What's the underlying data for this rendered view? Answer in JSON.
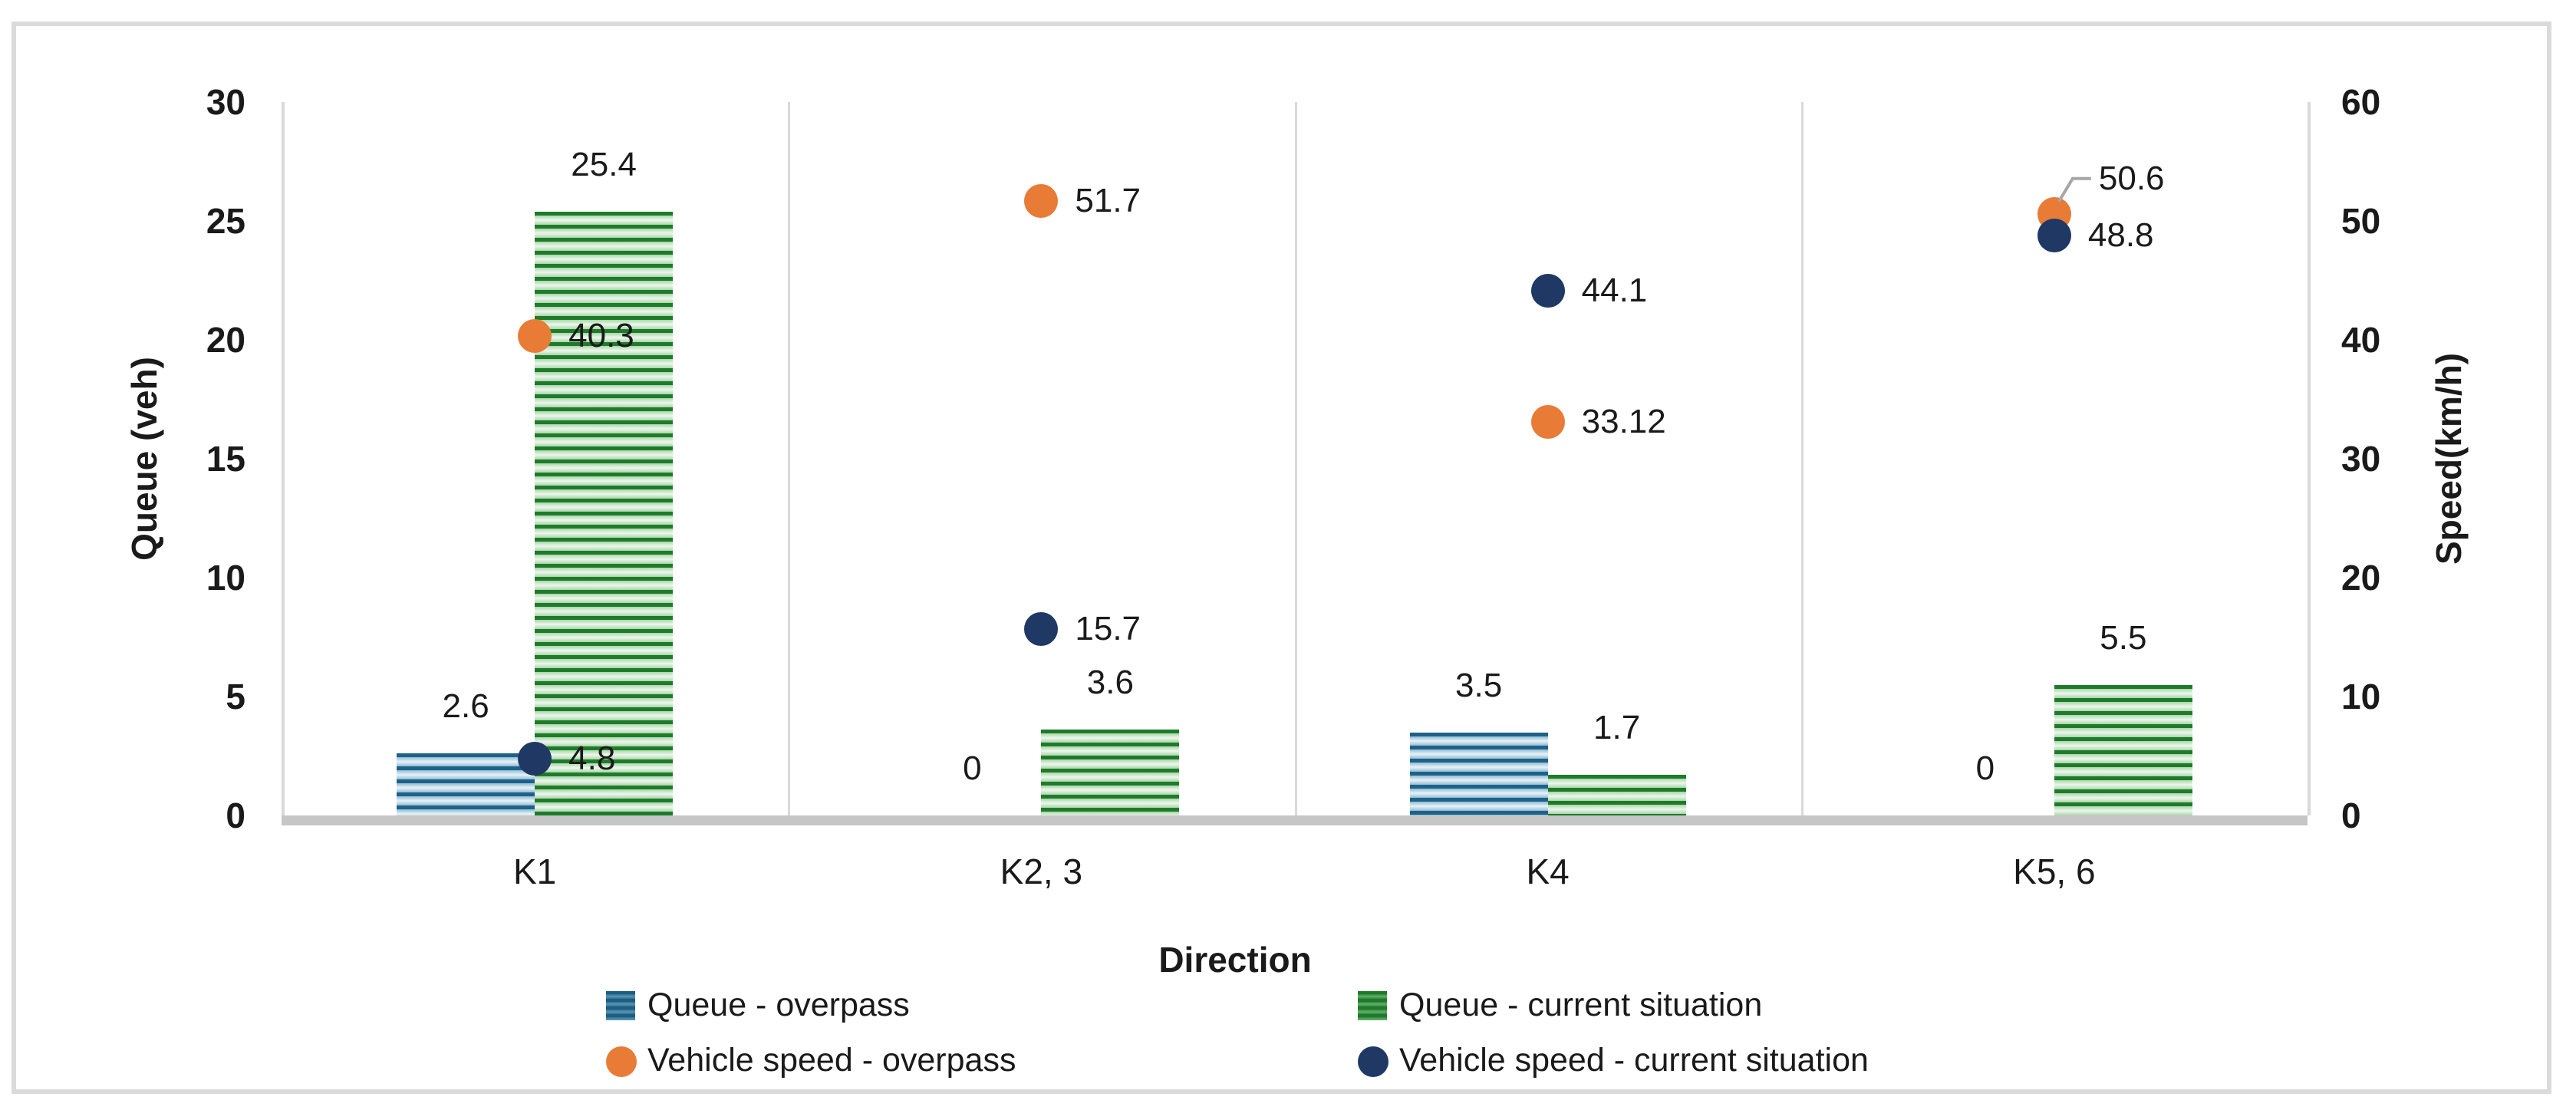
{
  "figure": {
    "background": "#ffffff",
    "border_color": "#dbdbdb"
  },
  "chart_data": {
    "type": "combo",
    "x_title": "Direction",
    "categories": [
      "K1",
      "K2, 3",
      "K4",
      "K5, 6"
    ],
    "left_axis": {
      "title": "Queue (veh)",
      "min": 0,
      "max": 30,
      "tick_step": 5,
      "ticks": [
        "0",
        "5",
        "10",
        "15",
        "20",
        "25",
        "30"
      ]
    },
    "right_axis": {
      "title": "Speed(km/h)",
      "min": 0,
      "max": 60,
      "tick_step": 10,
      "ticks": [
        "0",
        "10",
        "20",
        "30",
        "40",
        "50",
        "60"
      ]
    },
    "gridlines": "vertical-between-categories",
    "legend_position": "bottom-two-columns",
    "series": [
      {
        "name": "Queue - overpass",
        "type": "bar",
        "axis": "left",
        "swatch": "bar-blue",
        "values": [
          2.6,
          0,
          3.5,
          0
        ],
        "labels": [
          "2.6",
          "0",
          "3.5",
          "0"
        ]
      },
      {
        "name": "Queue - current situation",
        "type": "bar",
        "axis": "left",
        "swatch": "bar-green",
        "values": [
          25.4,
          3.6,
          1.7,
          5.5
        ],
        "labels": [
          "25.4",
          "3.6",
          "1.7",
          "5.5"
        ]
      },
      {
        "name": "Vehicle speed - overpass",
        "type": "scatter",
        "axis": "right",
        "swatch": "dot-orange",
        "values": [
          40.3,
          51.7,
          33.12,
          50.6
        ],
        "labels": [
          "40.3",
          "51.7",
          "33.12",
          "50.6"
        ],
        "label_overrides": {
          "3": {
            "dx": 14,
            "dy": -46,
            "leader": true
          }
        }
      },
      {
        "name": "Vehicle speed - current situation",
        "type": "scatter",
        "axis": "right",
        "swatch": "dot-navy",
        "values": [
          4.8,
          15.7,
          44.1,
          48.8
        ],
        "labels": [
          "4.8",
          "15.7",
          "44.1",
          "48.8"
        ]
      }
    ]
  },
  "colors": {
    "text": "#1a1a1a",
    "grid": "#d9d9d9",
    "baseline": "#c6c6c6",
    "bar_blue_dark": "#1e6189",
    "bar_blue_light": "#8fbcd3",
    "bar_green_dark": "#1e7b2a",
    "bar_green_light": "#a9d6a9",
    "dot_orange": "#e87b36",
    "dot_navy": "#1f3864",
    "leader_line": "#a6a6a6"
  }
}
